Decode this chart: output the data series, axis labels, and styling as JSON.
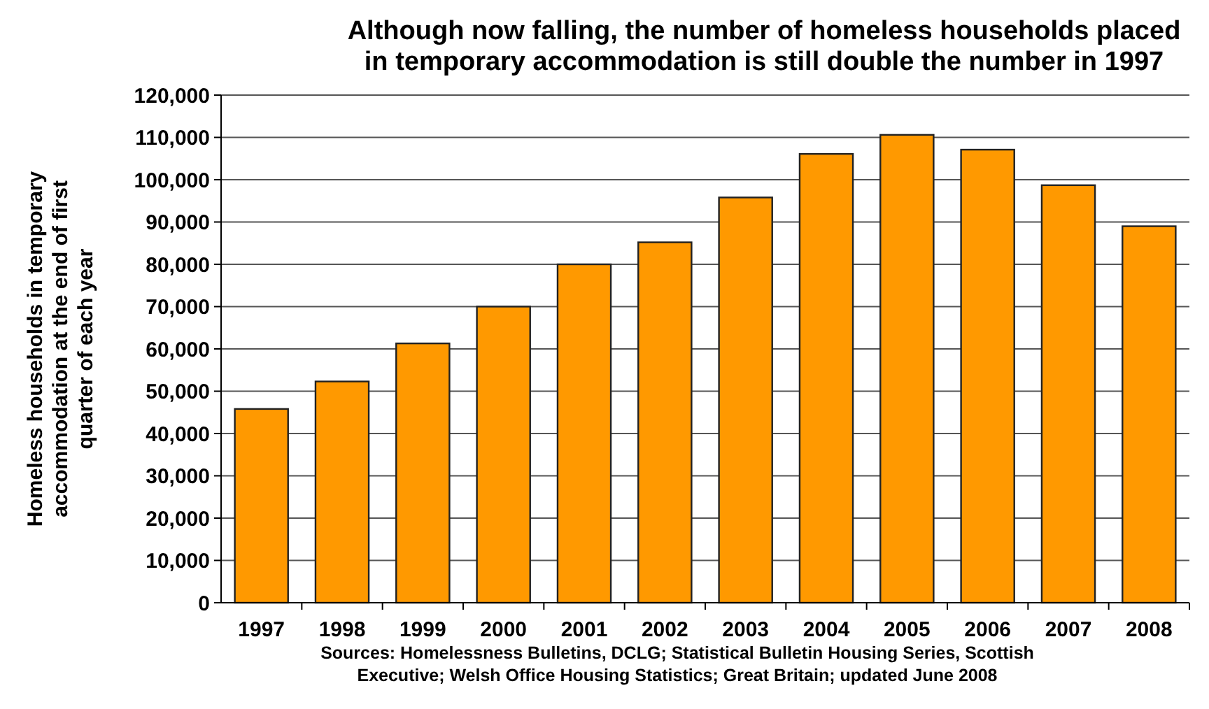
{
  "chart_data": {
    "type": "bar",
    "title": "Although now falling, the number of homeless households placed in temporary accommodation is still double the number in 1997",
    "ylabel": "Homeless households in temporary accommodation at the end of first quarter of each year",
    "categories": [
      "1997",
      "1998",
      "1999",
      "2000",
      "2001",
      "2002",
      "2003",
      "2004",
      "2005",
      "2006",
      "2007",
      "2008"
    ],
    "values": [
      45800,
      52300,
      61300,
      70000,
      80000,
      85200,
      95800,
      106100,
      110600,
      107100,
      98700,
      89000
    ],
    "color": "#ff9900",
    "ylim": [
      0,
      120000
    ],
    "yticks": [
      {
        "value": 0,
        "label": "0"
      },
      {
        "value": 10000,
        "label": "10,000"
      },
      {
        "value": 20000,
        "label": "20,000"
      },
      {
        "value": 30000,
        "label": "30,000"
      },
      {
        "value": 40000,
        "label": "40,000"
      },
      {
        "value": 50000,
        "label": "50,000"
      },
      {
        "value": 60000,
        "label": "60,000"
      },
      {
        "value": 70000,
        "label": "70,000"
      },
      {
        "value": 80000,
        "label": "80,000"
      },
      {
        "value": 90000,
        "label": "90,000"
      },
      {
        "value": 100000,
        "label": "100,000"
      },
      {
        "value": 110000,
        "label": "110,000"
      },
      {
        "value": 120000,
        "label": "120,000"
      }
    ],
    "grid": "y",
    "annotations": [
      "Sources: Homelessness Bulletins, DCLG; Statistical Bulletin Housing Series, Scottish Executive; Welsh Office Housing Statistics; Great Britain; updated June 2008"
    ]
  }
}
